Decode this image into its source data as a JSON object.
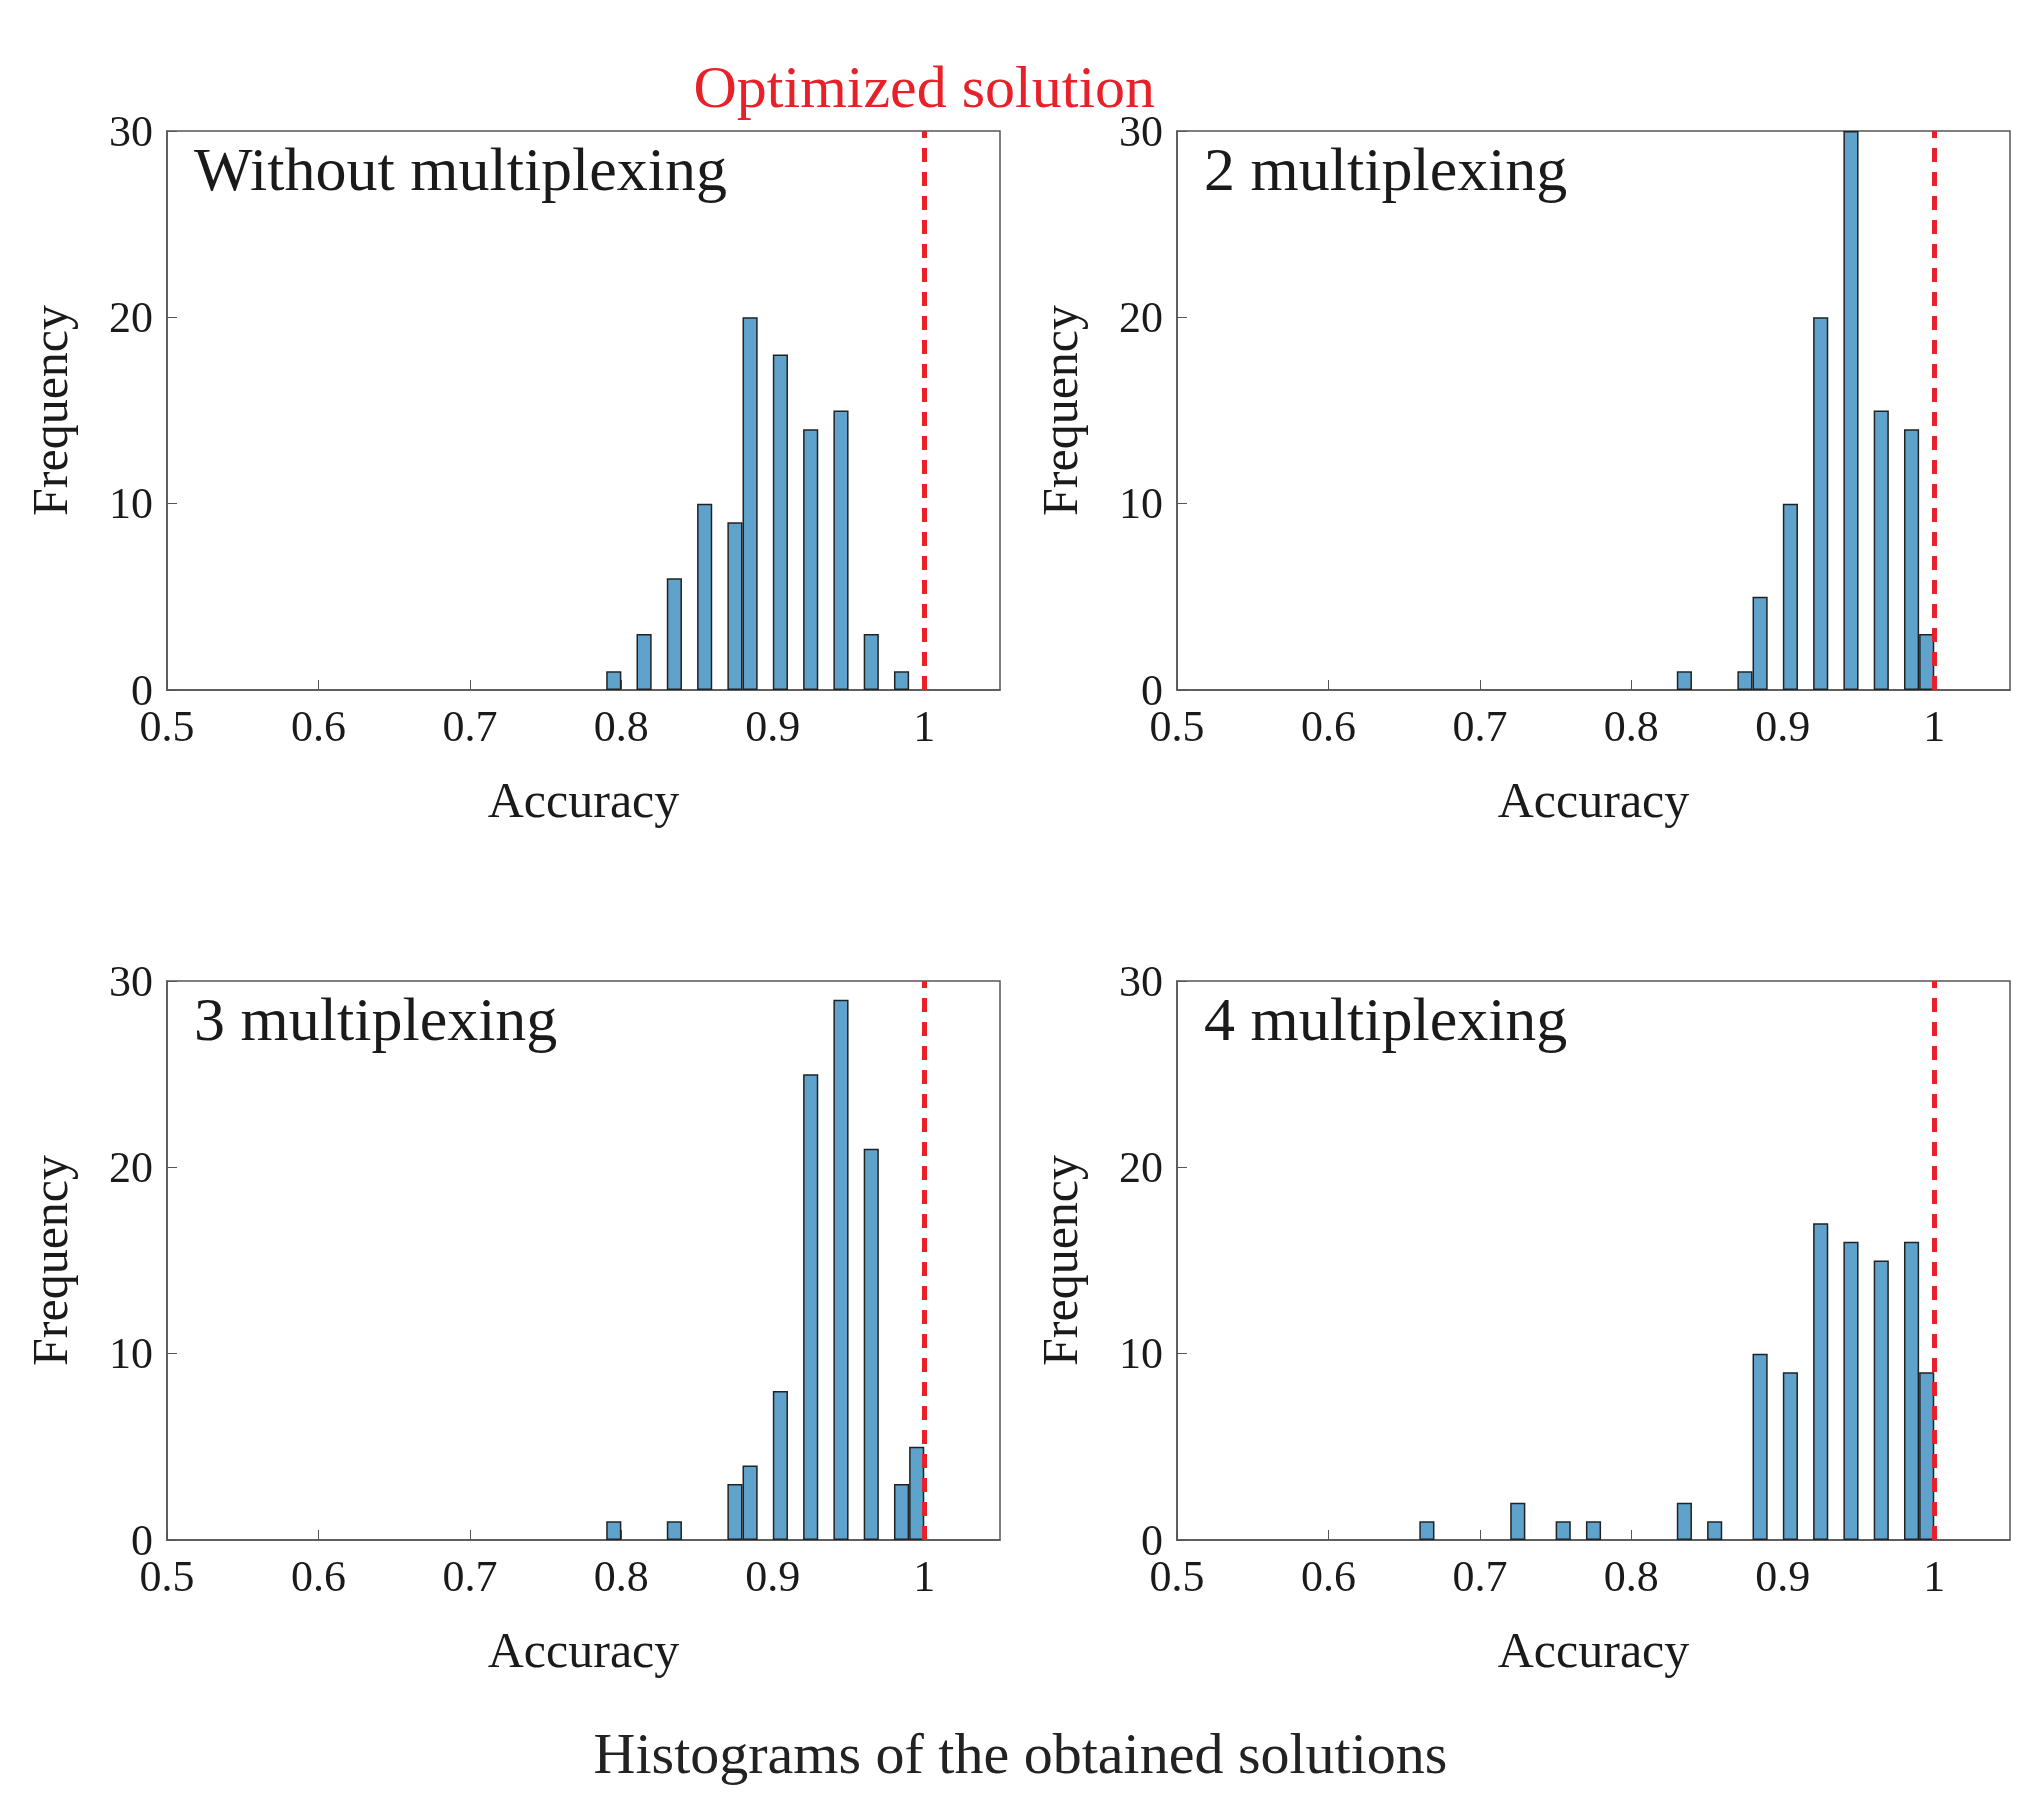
{
  "chart_data": [
    {
      "type": "bar",
      "title": "Without multiplexing",
      "xlabel": "Accuracy",
      "ylabel": "Frequency",
      "color": "#5fa2cc",
      "x": [
        0.795,
        0.815,
        0.835,
        0.855,
        0.875,
        0.885,
        0.905,
        0.925,
        0.945,
        0.965,
        0.985
      ],
      "values": [
        1,
        3,
        6,
        10,
        9,
        20,
        18,
        14,
        15,
        3,
        1
      ],
      "xlim": [
        0.5,
        1.05
      ],
      "xticks": [
        0.5,
        0.6,
        0.7,
        0.8,
        0.9,
        1
      ],
      "ylim": [
        0,
        30
      ],
      "yticks": [
        0,
        10,
        20,
        30
      ],
      "ref_lines": [
        {
          "axis": "x",
          "value": 1,
          "label": "Optimized solution",
          "color": "#e8202a",
          "line_style": "dashed"
        }
      ]
    },
    {
      "type": "bar",
      "title": "2 multiplexing",
      "xlabel": "Accuracy",
      "ylabel": "Frequency",
      "color": "#5fa2cc",
      "x": [
        0.835,
        0.875,
        0.885,
        0.905,
        0.925,
        0.945,
        0.965,
        0.985,
        0.995
      ],
      "values": [
        1,
        1,
        5,
        10,
        20,
        30,
        15,
        14,
        3
      ],
      "xlim": [
        0.5,
        1.05
      ],
      "xticks": [
        0.5,
        0.6,
        0.7,
        0.8,
        0.9,
        1
      ],
      "ylim": [
        0,
        30
      ],
      "yticks": [
        0,
        10,
        20,
        30
      ],
      "ref_lines": [
        {
          "axis": "x",
          "value": 1,
          "color": "#e8202a",
          "line_style": "dashed"
        }
      ]
    },
    {
      "type": "bar",
      "title": "3 multiplexing",
      "xlabel": "Accuracy",
      "ylabel": "Frequency",
      "color": "#5fa2cc",
      "x": [
        0.795,
        0.835,
        0.875,
        0.885,
        0.905,
        0.925,
        0.945,
        0.965,
        0.985,
        0.995
      ],
      "values": [
        1,
        1,
        3,
        4,
        8,
        25,
        29,
        21,
        3,
        5
      ],
      "xlim": [
        0.5,
        1.05
      ],
      "xticks": [
        0.5,
        0.6,
        0.7,
        0.8,
        0.9,
        1
      ],
      "ylim": [
        0,
        30
      ],
      "yticks": [
        0,
        10,
        20,
        30
      ],
      "ref_lines": [
        {
          "axis": "x",
          "value": 1,
          "color": "#e8202a",
          "line_style": "dashed"
        }
      ]
    },
    {
      "type": "bar",
      "title": "4 multiplexing",
      "xlabel": "Accuracy",
      "ylabel": "Frequency",
      "color": "#5fa2cc",
      "x": [
        0.665,
        0.725,
        0.755,
        0.775,
        0.835,
        0.855,
        0.885,
        0.905,
        0.925,
        0.945,
        0.965,
        0.985,
        0.995
      ],
      "values": [
        1,
        2,
        1,
        1,
        2,
        1,
        10,
        9,
        17,
        16,
        15,
        16,
        9
      ],
      "xlim": [
        0.5,
        1.05
      ],
      "xticks": [
        0.5,
        0.6,
        0.7,
        0.8,
        0.9,
        1
      ],
      "ylim": [
        0,
        30
      ],
      "yticks": [
        0,
        10,
        20,
        30
      ],
      "ref_lines": [
        {
          "axis": "x",
          "value": 1,
          "color": "#e8202a",
          "line_style": "dashed"
        }
      ],
      "annotations": [
        "Histograms of the obtained solutions"
      ]
    }
  ]
}
